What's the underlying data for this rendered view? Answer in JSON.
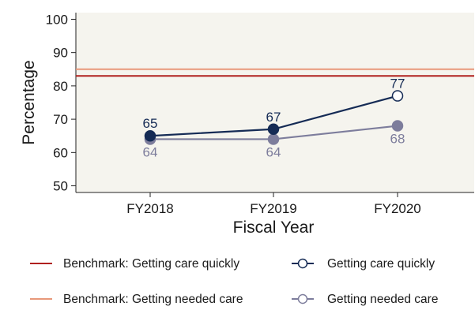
{
  "chart_data": {
    "type": "line",
    "xlabel": "Fiscal Year",
    "ylabel": "Percentage",
    "categories": [
      "FY2018",
      "FY2019",
      "FY2020"
    ],
    "ylim": [
      48,
      102
    ],
    "yticks": [
      50,
      60,
      70,
      80,
      90,
      100
    ],
    "grid": false,
    "legend_position": "bottom",
    "colors": {
      "plot_background": "#f5f4ee",
      "benchmark_quickly": "#b0201e",
      "benchmark_needed": "#e8987a",
      "quickly": "#152b55",
      "needed": "#7d7d9c"
    },
    "benchmarks": [
      {
        "name": "Benchmark: Getting care quickly",
        "value": 83
      },
      {
        "name": "Benchmark: Getting needed care",
        "value": 85
      }
    ],
    "series": [
      {
        "name": "Getting care quickly",
        "values": [
          65,
          67,
          77
        ],
        "labels": [
          "65",
          "67",
          "77"
        ],
        "hollow_last": true
      },
      {
        "name": "Getting needed care",
        "values": [
          64,
          64,
          68
        ],
        "labels": [
          "64",
          "64",
          "68"
        ],
        "hollow_last": false
      }
    ]
  }
}
